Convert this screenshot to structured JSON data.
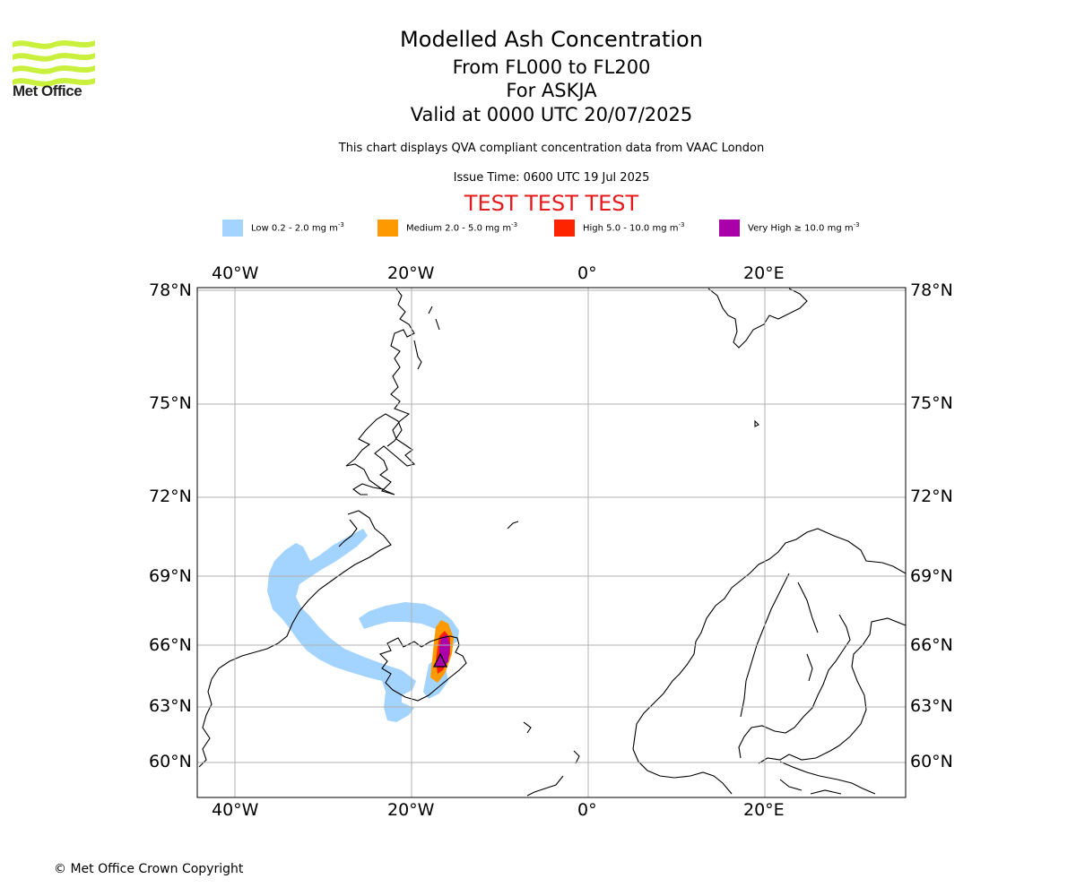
{
  "logo": {
    "text": "Met Office",
    "color": "#c8f03c"
  },
  "header": {
    "title": "Modelled Ash Concentration",
    "level_range": "From FL000 to FL200",
    "volcano": "For ASKJA",
    "valid": "Valid at 0000 UTC 20/07/2025",
    "description": "This chart displays QVA compliant concentration data from VAAC London",
    "issue_time": "Issue Time: 0600 UTC 19 Jul 2025",
    "test_banner": "TEST TEST TEST"
  },
  "legend": [
    {
      "label": "Low 0.2 - 2.0 mg m",
      "sup": "-3",
      "color": "#a3d3ff"
    },
    {
      "label": "Medium 2.0 - 5.0 mg m",
      "sup": "-3",
      "color": "#ff9900"
    },
    {
      "label": "High 5.0 - 10.0 mg m",
      "sup": "-3",
      "color": "#ff2400"
    },
    {
      "label": "Very High ≥ 10.0 mg m",
      "sup": "-3",
      "color": "#aa00aa"
    }
  ],
  "map": {
    "lon_labels": [
      "40°W",
      "20°W",
      "0°",
      "20°E"
    ],
    "lat_labels": [
      "78°N",
      "75°N",
      "72°N",
      "69°N",
      "66°N",
      "63°N",
      "60°N"
    ],
    "volcano_marker": "Askja"
  },
  "footer": {
    "copyright": "© Met Office Crown Copyright"
  }
}
